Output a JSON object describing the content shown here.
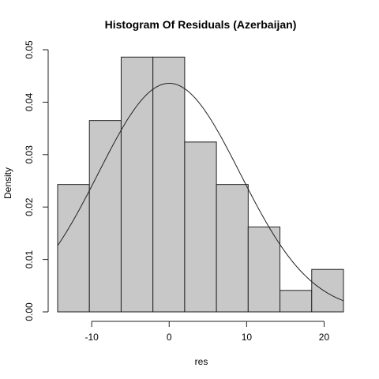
{
  "chart_data": {
    "type": "bar",
    "title": "Histogram Of Residuals (Azerbaijan)",
    "xlabel": "res",
    "ylabel": "Density",
    "bins": [
      {
        "start": -14.4,
        "end": -10.3,
        "density": 0.0243
      },
      {
        "start": -10.3,
        "end": -6.2,
        "density": 0.0365
      },
      {
        "start": -6.2,
        "end": -2.1,
        "density": 0.0486
      },
      {
        "start": -2.1,
        "end": 2.0,
        "density": 0.0486
      },
      {
        "start": 2.0,
        "end": 6.1,
        "density": 0.0324
      },
      {
        "start": 6.1,
        "end": 10.2,
        "density": 0.0243
      },
      {
        "start": 10.2,
        "end": 14.3,
        "density": 0.0162
      },
      {
        "start": 14.3,
        "end": 18.4,
        "density": 0.0041
      },
      {
        "start": 18.4,
        "end": 22.5,
        "density": 0.0081
      }
    ],
    "overlay_curve": {
      "type": "normal",
      "mean": 0,
      "sd": 9.15,
      "x_range": [
        -14.4,
        22.5
      ]
    },
    "xlim": [
      -14.4,
      22.5
    ],
    "ylim": [
      0,
      0.05
    ],
    "xticks": [
      -10,
      0,
      10,
      20
    ],
    "xtick_labels": [
      "-10",
      "0",
      "10",
      "20"
    ],
    "yticks": [
      0,
      0.01,
      0.02,
      0.03,
      0.04,
      0.05
    ],
    "ytick_labels": [
      "0.00",
      "0.01",
      "0.02",
      "0.03",
      "0.04",
      "0.05"
    ],
    "grid": false,
    "legend": "none"
  }
}
